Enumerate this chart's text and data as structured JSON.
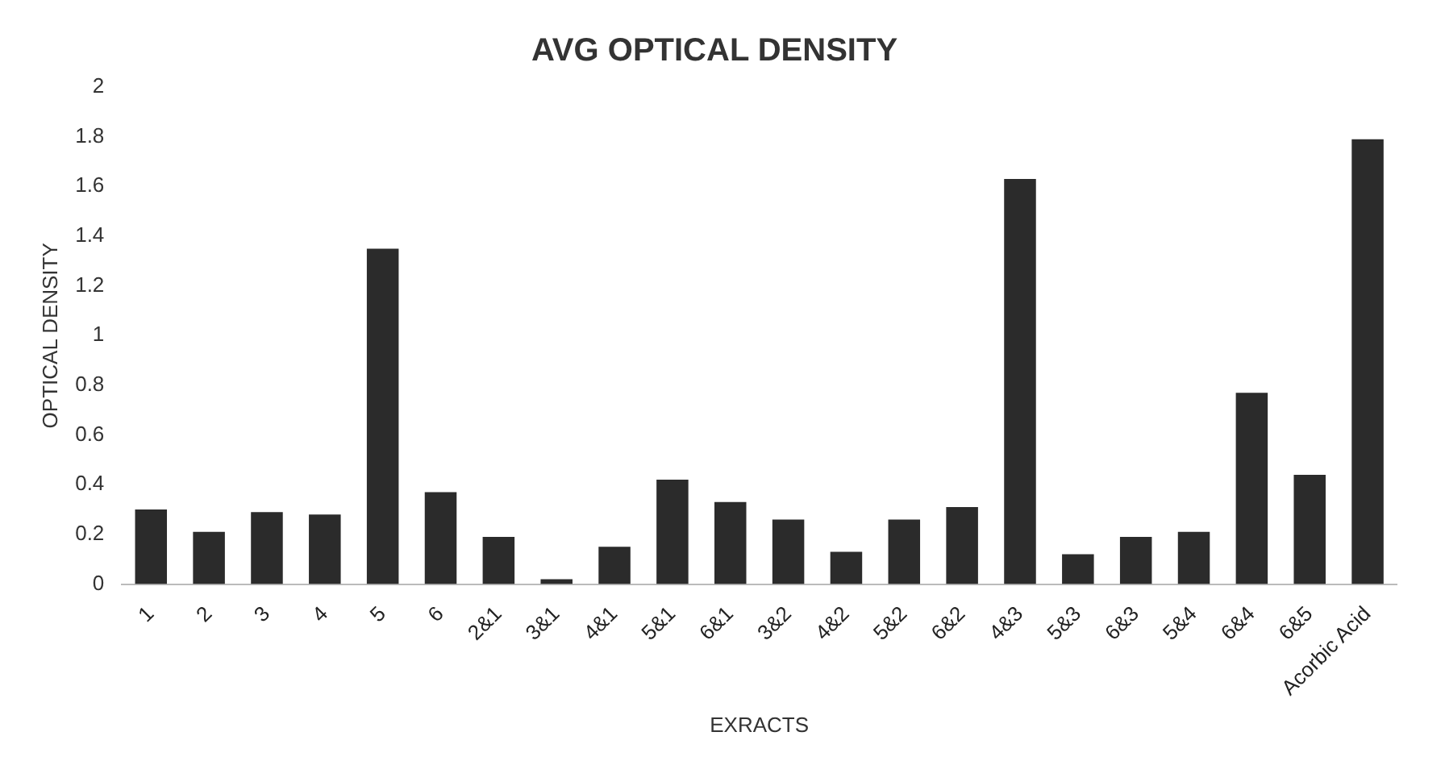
{
  "chart_data": {
    "type": "bar",
    "title": "AVG OPTICAL DENSITY",
    "xlabel": "EXRACTS",
    "ylabel": "OPTICAL DENSITY",
    "categories": [
      "1",
      "2",
      "3",
      "4",
      "5",
      "6",
      "2&1",
      "3&1",
      "4&1",
      "5&1",
      "6&1",
      "3&2",
      "4&2",
      "5&2",
      "6&2",
      "4&3",
      "5&3",
      "6&3",
      "5&4",
      "6&4",
      "6&5",
      "Acorbic Acid"
    ],
    "values": [
      0.3,
      0.21,
      0.29,
      0.28,
      1.35,
      0.37,
      0.19,
      0.02,
      0.15,
      0.42,
      0.33,
      0.26,
      0.13,
      0.26,
      0.31,
      1.63,
      0.12,
      0.19,
      0.21,
      0.77,
      0.44,
      1.79
    ],
    "color": "#2b2b2b",
    "ylim": [
      0,
      2
    ],
    "yticks": [
      0,
      0.2,
      0.4,
      0.6,
      0.8,
      1,
      1.2,
      1.4,
      1.6,
      1.8,
      2
    ],
    "grid": false,
    "legend": false
  }
}
